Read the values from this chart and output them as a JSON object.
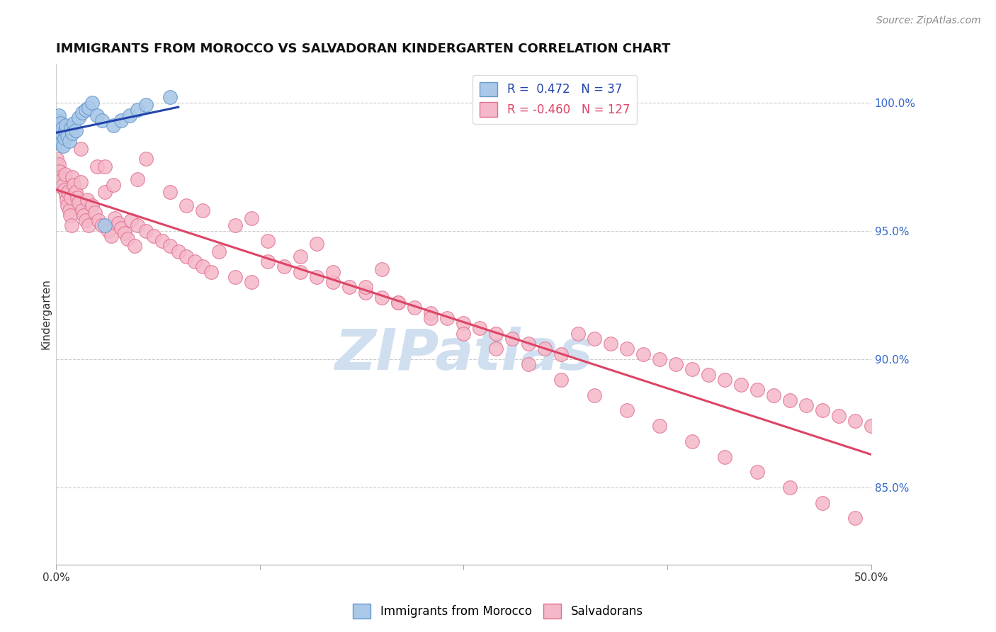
{
  "title": "IMMIGRANTS FROM MOROCCO VS SALVADORAN KINDERGARTEN CORRELATION CHART",
  "source": "Source: ZipAtlas.com",
  "ylabel": "Kindergarten",
  "yaxis_ticks": [
    85.0,
    90.0,
    95.0,
    100.0
  ],
  "xlim": [
    0.0,
    50.0
  ],
  "ylim": [
    82.0,
    101.5
  ],
  "blue_R": 0.472,
  "blue_N": 37,
  "pink_R": -0.46,
  "pink_N": 127,
  "blue_color": "#aac8e8",
  "blue_edge": "#6699cc",
  "pink_color": "#f5b8c8",
  "pink_edge": "#e07090",
  "blue_line_color": "#2244aa",
  "pink_line_color": "#dd4466",
  "legend_label_blue": "Immigrants from Morocco",
  "legend_label_pink": "Salvadorans",
  "watermark_color": "#d0dff0",
  "title_fontsize": 13,
  "source_fontsize": 10,
  "axis_label_fontsize": 11,
  "tick_fontsize": 11,
  "legend_fontsize": 12,
  "blue_scatter_x": [
    0.05,
    0.08,
    0.1,
    0.12,
    0.15,
    0.18,
    0.2,
    0.22,
    0.25,
    0.28,
    0.3,
    0.35,
    0.4,
    0.45,
    0.5,
    0.55,
    0.6,
    0.7,
    0.8,
    0.9,
    1.0,
    1.1,
    1.2,
    1.4,
    1.6,
    1.8,
    2.0,
    2.2,
    2.5,
    2.8,
    3.0,
    3.5,
    4.0,
    4.5,
    5.0,
    5.5,
    7.0
  ],
  "blue_scatter_y": [
    98.8,
    99.1,
    98.5,
    99.3,
    98.9,
    99.5,
    99.0,
    98.7,
    99.2,
    98.6,
    98.4,
    98.8,
    99.0,
    98.3,
    98.6,
    98.9,
    99.1,
    98.7,
    98.5,
    99.0,
    98.8,
    99.2,
    98.9,
    99.4,
    99.6,
    99.7,
    99.8,
    100.0,
    99.5,
    99.3,
    95.2,
    99.1,
    99.3,
    99.5,
    99.7,
    99.9,
    100.2
  ],
  "pink_scatter_x": [
    0.05,
    0.1,
    0.15,
    0.2,
    0.25,
    0.3,
    0.35,
    0.4,
    0.45,
    0.5,
    0.55,
    0.6,
    0.65,
    0.7,
    0.75,
    0.8,
    0.85,
    0.9,
    0.95,
    1.0,
    1.1,
    1.2,
    1.3,
    1.4,
    1.5,
    1.6,
    1.7,
    1.8,
    1.9,
    2.0,
    2.2,
    2.4,
    2.6,
    2.8,
    3.0,
    3.2,
    3.4,
    3.6,
    3.8,
    4.0,
    4.2,
    4.4,
    4.6,
    4.8,
    5.0,
    5.5,
    6.0,
    6.5,
    7.0,
    7.5,
    8.0,
    8.5,
    9.0,
    9.5,
    10.0,
    11.0,
    12.0,
    13.0,
    14.0,
    15.0,
    16.0,
    17.0,
    18.0,
    19.0,
    20.0,
    21.0,
    22.0,
    23.0,
    24.0,
    25.0,
    26.0,
    27.0,
    28.0,
    29.0,
    30.0,
    31.0,
    32.0,
    33.0,
    34.0,
    35.0,
    36.0,
    37.0,
    38.0,
    39.0,
    40.0,
    41.0,
    42.0,
    43.0,
    44.0,
    45.0,
    46.0,
    47.0,
    48.0,
    49.0,
    50.0,
    2.5,
    3.5,
    5.0,
    7.0,
    9.0,
    11.0,
    13.0,
    15.0,
    17.0,
    19.0,
    21.0,
    23.0,
    25.0,
    27.0,
    29.0,
    31.0,
    33.0,
    35.0,
    37.0,
    39.0,
    41.0,
    43.0,
    45.0,
    47.0,
    49.0,
    1.5,
    3.0,
    5.5,
    8.0,
    12.0,
    16.0,
    20.0
  ],
  "pink_scatter_y": [
    97.8,
    97.5,
    97.6,
    97.3,
    97.1,
    96.9,
    96.7,
    97.0,
    96.8,
    96.6,
    97.2,
    96.4,
    96.2,
    96.0,
    96.5,
    95.8,
    95.6,
    96.3,
    95.2,
    97.1,
    96.8,
    96.5,
    96.3,
    96.1,
    96.9,
    95.8,
    95.6,
    95.4,
    96.2,
    95.2,
    96.0,
    95.7,
    95.4,
    95.2,
    96.5,
    95.0,
    94.8,
    95.5,
    95.3,
    95.1,
    94.9,
    94.7,
    95.4,
    94.4,
    95.2,
    95.0,
    94.8,
    94.6,
    94.4,
    94.2,
    94.0,
    93.8,
    93.6,
    93.4,
    94.2,
    93.2,
    93.0,
    93.8,
    93.6,
    93.4,
    93.2,
    93.0,
    92.8,
    92.6,
    92.4,
    92.2,
    92.0,
    91.8,
    91.6,
    91.4,
    91.2,
    91.0,
    90.8,
    90.6,
    90.4,
    90.2,
    91.0,
    90.8,
    90.6,
    90.4,
    90.2,
    90.0,
    89.8,
    89.6,
    89.4,
    89.2,
    89.0,
    88.8,
    88.6,
    88.4,
    88.2,
    88.0,
    87.8,
    87.6,
    87.4,
    97.5,
    96.8,
    97.0,
    96.5,
    95.8,
    95.2,
    94.6,
    94.0,
    93.4,
    92.8,
    92.2,
    91.6,
    91.0,
    90.4,
    89.8,
    89.2,
    88.6,
    88.0,
    87.4,
    86.8,
    86.2,
    85.6,
    85.0,
    84.4,
    83.8,
    98.2,
    97.5,
    97.8,
    96.0,
    95.5,
    94.5,
    93.5
  ]
}
